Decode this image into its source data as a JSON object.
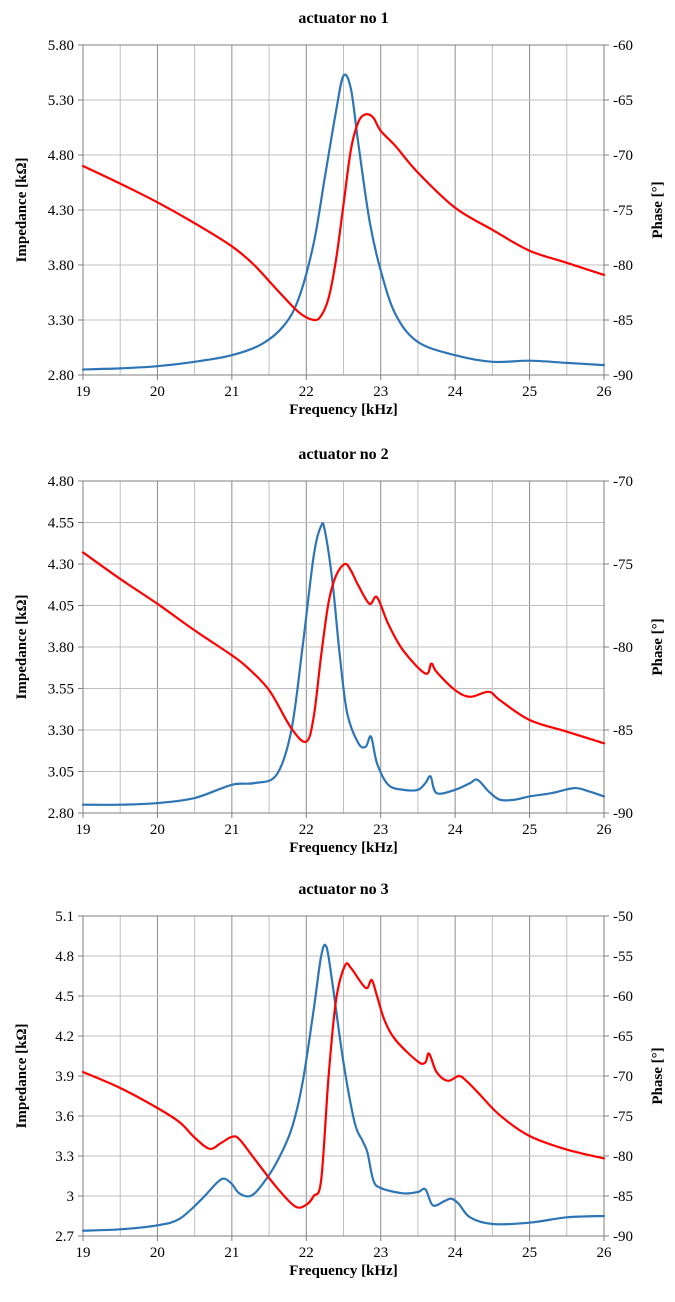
{
  "chart_data": [
    {
      "type": "line",
      "title": "actuator no 1",
      "xlabel": "Frequency [kHz]",
      "ylabel": "Impedance [kΩ]",
      "y2label": "Phase [°]",
      "xlim": [
        19,
        26
      ],
      "ylim": [
        2.8,
        5.8
      ],
      "y2lim": [
        -90,
        -60
      ],
      "x_ticks": [
        "19",
        "20",
        "21",
        "22",
        "23",
        "24",
        "25",
        "26"
      ],
      "y_ticks": [
        "2.80",
        "3.30",
        "3.80",
        "4.30",
        "4.80",
        "5.30",
        "5.80"
      ],
      "y2_ticks": [
        "-90",
        "-85",
        "-80",
        "-75",
        "-70",
        "-65",
        "-60"
      ],
      "grid": true,
      "series": [
        {
          "color": "#2e75b6",
          "axis": "left",
          "x": [
            19,
            19.5,
            20,
            20.5,
            21,
            21.4,
            21.7,
            21.9,
            22.1,
            22.25,
            22.4,
            22.5,
            22.6,
            22.7,
            22.85,
            23,
            23.2,
            23.5,
            24,
            24.5,
            25,
            25.5,
            26
          ],
          "y": [
            2.85,
            2.86,
            2.88,
            2.92,
            2.98,
            3.08,
            3.25,
            3.5,
            4.0,
            4.6,
            5.2,
            5.52,
            5.4,
            4.9,
            4.2,
            3.75,
            3.35,
            3.1,
            2.98,
            2.92,
            2.93,
            2.91,
            2.89
          ]
        },
        {
          "color": "#ff0000",
          "axis": "right",
          "x": [
            19,
            19.5,
            20,
            20.5,
            21,
            21.3,
            21.6,
            21.9,
            22.1,
            22.2,
            22.3,
            22.4,
            22.5,
            22.6,
            22.7,
            22.8,
            22.9,
            23.0,
            23.2,
            23.5,
            24,
            24.5,
            25,
            25.5,
            26
          ],
          "y": [
            -71,
            -72.6,
            -74.3,
            -76.2,
            -78.3,
            -80,
            -82.2,
            -84.3,
            -85,
            -84.6,
            -83,
            -79.5,
            -74.5,
            -69.5,
            -67,
            -66.3,
            -66.6,
            -67.8,
            -69.2,
            -71.6,
            -74.8,
            -76.8,
            -78.7,
            -79.8,
            -80.9
          ]
        }
      ]
    },
    {
      "type": "line",
      "title": "actuator no 2",
      "xlabel": "Frequency [kHz]",
      "ylabel": "Impedance [kΩ]",
      "y2label": "Phase [°]",
      "xlim": [
        19,
        26
      ],
      "ylim": [
        2.8,
        4.8
      ],
      "y2lim": [
        -90,
        -70
      ],
      "x_ticks": [
        "19",
        "20",
        "21",
        "22",
        "23",
        "24",
        "25",
        "26"
      ],
      "y_ticks": [
        "2.80",
        "3.05",
        "3.30",
        "3.55",
        "3.80",
        "4.05",
        "4.30",
        "4.55",
        "4.80"
      ],
      "y2_ticks": [
        "-90",
        "-85",
        "-80",
        "-75",
        "-70"
      ],
      "grid": true,
      "series": [
        {
          "color": "#2e75b6",
          "axis": "left",
          "x": [
            19,
            19.5,
            20,
            20.5,
            21,
            21.3,
            21.6,
            21.8,
            21.95,
            22.1,
            22.2,
            22.25,
            22.35,
            22.45,
            22.55,
            22.7,
            22.8,
            22.87,
            22.95,
            23.1,
            23.3,
            23.5,
            23.6,
            23.67,
            23.75,
            24,
            24.2,
            24.3,
            24.45,
            24.6,
            24.8,
            25,
            25.3,
            25.6,
            25.8,
            26
          ],
          "y": [
            2.85,
            2.85,
            2.86,
            2.89,
            2.97,
            2.98,
            3.03,
            3.3,
            3.8,
            4.35,
            4.53,
            4.5,
            4.2,
            3.75,
            3.4,
            3.22,
            3.2,
            3.26,
            3.1,
            2.97,
            2.94,
            2.94,
            2.98,
            3.02,
            2.92,
            2.94,
            2.98,
            3.0,
            2.93,
            2.88,
            2.88,
            2.9,
            2.92,
            2.95,
            2.93,
            2.9
          ]
        },
        {
          "color": "#ff0000",
          "axis": "right",
          "x": [
            19,
            19.5,
            20,
            20.5,
            21,
            21.2,
            21.5,
            21.8,
            22.0,
            22.1,
            22.2,
            22.3,
            22.4,
            22.52,
            22.6,
            22.7,
            22.85,
            22.95,
            23.1,
            23.3,
            23.6,
            23.68,
            23.75,
            24,
            24.2,
            24.45,
            24.6,
            25,
            25.5,
            26
          ],
          "y": [
            -74.3,
            -75.9,
            -77.4,
            -79.0,
            -80.5,
            -81.2,
            -82.6,
            -84.9,
            -85.7,
            -84.2,
            -80.5,
            -77.3,
            -75.7,
            -75.0,
            -75.4,
            -76.3,
            -77.4,
            -77.0,
            -78.6,
            -80.2,
            -81.6,
            -81.0,
            -81.5,
            -82.6,
            -83.0,
            -82.7,
            -83.2,
            -84.4,
            -85.1,
            -85.8
          ]
        }
      ]
    },
    {
      "type": "line",
      "title": "actuator no 3",
      "xlabel": "Frequency [kHz]",
      "ylabel": "Impedance [kΩ]",
      "y2label": "Phase [°]",
      "xlim": [
        19,
        26
      ],
      "ylim": [
        2.7,
        5.1
      ],
      "y2lim": [
        -90,
        -50
      ],
      "x_ticks": [
        "19",
        "20",
        "21",
        "22",
        "23",
        "24",
        "25",
        "26"
      ],
      "y_ticks": [
        "2.7",
        "3",
        "3.3",
        "3.6",
        "3.9",
        "4.2",
        "4.5",
        "4.8",
        "5.1"
      ],
      "y2_ticks": [
        "-90",
        "-85",
        "-80",
        "-75",
        "-70",
        "-65",
        "-60",
        "-55",
        "-50"
      ],
      "grid": true,
      "series": [
        {
          "color": "#2e75b6",
          "axis": "left",
          "x": [
            19,
            19.5,
            20,
            20.3,
            20.6,
            20.8,
            20.9,
            21.0,
            21.1,
            21.25,
            21.4,
            21.6,
            21.8,
            21.95,
            22.1,
            22.2,
            22.27,
            22.35,
            22.5,
            22.65,
            22.75,
            22.82,
            22.9,
            23.0,
            23.3,
            23.5,
            23.6,
            23.7,
            23.85,
            23.95,
            24.05,
            24.2,
            24.5,
            25,
            25.5,
            26
          ],
          "y": [
            2.74,
            2.75,
            2.78,
            2.83,
            2.98,
            3.1,
            3.13,
            3.09,
            3.02,
            3.0,
            3.08,
            3.25,
            3.5,
            3.85,
            4.4,
            4.8,
            4.87,
            4.6,
            4.0,
            3.55,
            3.42,
            3.33,
            3.12,
            3.06,
            3.02,
            3.03,
            3.05,
            2.93,
            2.96,
            2.98,
            2.94,
            2.84,
            2.79,
            2.8,
            2.84,
            2.85
          ]
        },
        {
          "color": "#ff0000",
          "axis": "right",
          "x": [
            19,
            19.5,
            20,
            20.3,
            20.5,
            20.7,
            20.85,
            21.0,
            21.1,
            21.3,
            21.6,
            21.85,
            22.0,
            22.1,
            22.2,
            22.3,
            22.4,
            22.52,
            22.6,
            22.75,
            22.82,
            22.88,
            22.95,
            23.05,
            23.2,
            23.5,
            23.6,
            23.65,
            23.75,
            23.9,
            24.05,
            24.15,
            24.3,
            24.6,
            25,
            25.5,
            26
          ],
          "y": [
            -69.5,
            -71.5,
            -74.0,
            -75.8,
            -77.7,
            -79.1,
            -78.4,
            -77.6,
            -77.9,
            -80.3,
            -83.9,
            -86.3,
            -86.1,
            -85.0,
            -83.0,
            -70.0,
            -60.5,
            -56.2,
            -56.5,
            -58.5,
            -59.0,
            -58.0,
            -60.0,
            -63.0,
            -65.5,
            -68.2,
            -68.3,
            -67.2,
            -69.5,
            -70.6,
            -70.0,
            -70.6,
            -72.0,
            -74.9,
            -77.5,
            -79.2,
            -80.3
          ]
        }
      ]
    }
  ]
}
